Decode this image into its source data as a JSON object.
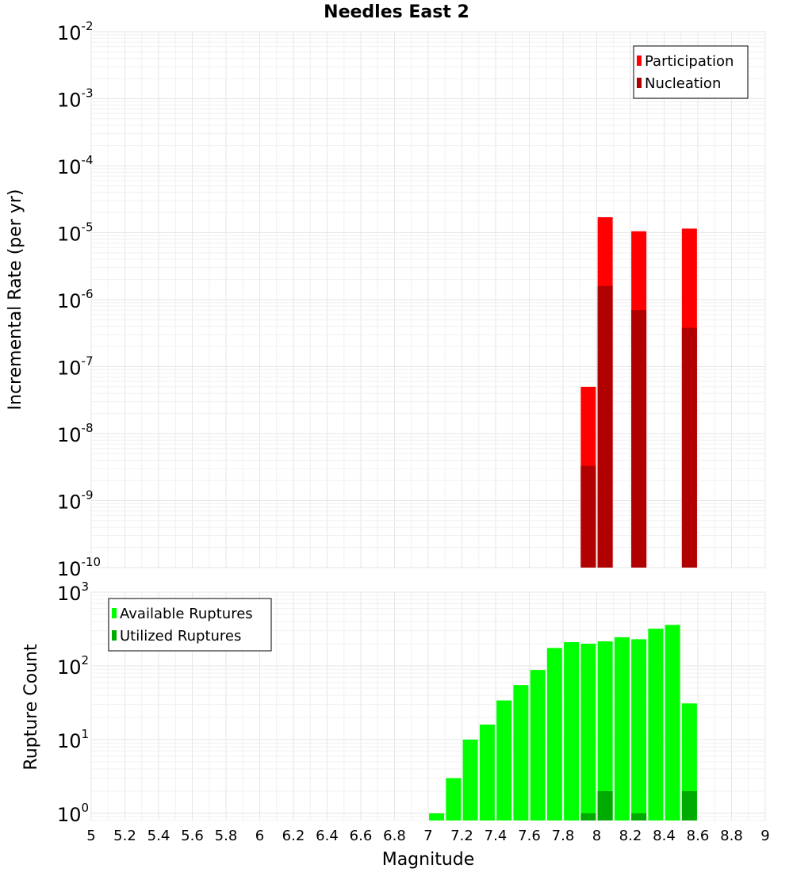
{
  "chart_data": [
    {
      "type": "bar",
      "title": "Needles East 2",
      "xlabel": "",
      "ylabel": "Incremental Rate (per yr)",
      "yscale": "log",
      "ylim": [
        1e-10,
        0.01
      ],
      "xlim": [
        5,
        9
      ],
      "grid": true,
      "legend_position": "top-right",
      "ytick_labels": [
        {
          "base": "10",
          "exp": "-10"
        },
        {
          "base": "10",
          "exp": "-9"
        },
        {
          "base": "10",
          "exp": "-8"
        },
        {
          "base": "10",
          "exp": "-7"
        },
        {
          "base": "10",
          "exp": "-6"
        },
        {
          "base": "10",
          "exp": "-5"
        },
        {
          "base": "10",
          "exp": "-4"
        },
        {
          "base": "10",
          "exp": "-3"
        },
        {
          "base": "10",
          "exp": "-2"
        }
      ],
      "series": [
        {
          "name": "Participation",
          "color": "#ff0000",
          "x": [
            7.95,
            8.05,
            8.25,
            8.55
          ],
          "values": [
            5e-08,
            1.7e-05,
            1.05e-05,
            1.15e-05
          ]
        },
        {
          "name": "Nucleation",
          "color": "#b00000",
          "x": [
            7.95,
            8.05,
            8.25,
            8.55
          ],
          "values": [
            3.3e-09,
            1.6e-06,
            7e-07,
            3.8e-07
          ]
        }
      ]
    },
    {
      "type": "bar",
      "title": "",
      "xlabel": "Magnitude",
      "ylabel": "Rupture Count",
      "yscale": "log",
      "ylim": [
        0.8,
        1000
      ],
      "xlim": [
        5,
        9
      ],
      "grid": true,
      "legend_position": "top-left",
      "ytick_labels": [
        {
          "base": "10",
          "exp": "0"
        },
        {
          "base": "10",
          "exp": "1"
        },
        {
          "base": "10",
          "exp": "2"
        },
        {
          "base": "10",
          "exp": "3"
        }
      ],
      "xtick_labels": [
        "5",
        "5.2",
        "5.4",
        "5.6",
        "5.8",
        "6",
        "6.2",
        "6.4",
        "6.6",
        "6.8",
        "7",
        "7.2",
        "7.4",
        "7.6",
        "7.8",
        "8",
        "8.2",
        "8.4",
        "8.6",
        "8.8",
        "9"
      ],
      "series": [
        {
          "name": "Available Ruptures",
          "color": "#00ff00",
          "x": [
            7.05,
            7.15,
            7.25,
            7.35,
            7.45,
            7.55,
            7.65,
            7.75,
            7.85,
            7.95,
            8.05,
            8.15,
            8.25,
            8.35,
            8.45,
            8.55
          ],
          "values": [
            1,
            3,
            10,
            16,
            34,
            55,
            88,
            175,
            210,
            200,
            215,
            245,
            230,
            320,
            360,
            31
          ]
        },
        {
          "name": "Utilized Ruptures",
          "color": "#00aa00",
          "x": [
            7.95,
            8.05,
            8.25,
            8.55
          ],
          "values": [
            1,
            2,
            1,
            2
          ]
        }
      ]
    }
  ]
}
